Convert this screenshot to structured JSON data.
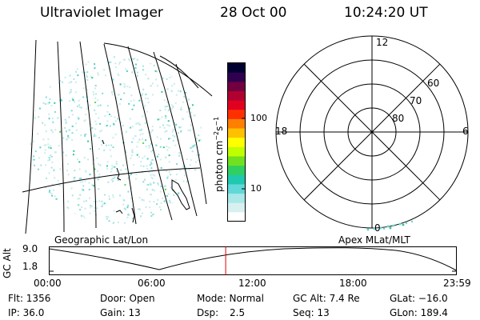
{
  "header": {
    "title": "Ultraviolet Imager",
    "date": "28 Oct 00",
    "time": "10:24:20 UT"
  },
  "colorbar": {
    "unit_label": "photon cm",
    "unit_exp1": "−2",
    "unit_mid": "s",
    "unit_exp2": "−1",
    "ticks": [
      "100",
      "10"
    ],
    "colors": [
      "#ffffff",
      "#d8f0f0",
      "#a8e8e8",
      "#60d8d8",
      "#20c8b0",
      "#30d060",
      "#70e020",
      "#c0ff00",
      "#ffff00",
      "#ffc000",
      "#ff8000",
      "#ff3000",
      "#e00020",
      "#b00030",
      "#700040",
      "#300050",
      "#000030"
    ]
  },
  "polar": {
    "labels": {
      "top": "12",
      "left": "18",
      "right": "6",
      "bottom": "0"
    },
    "lat_labels": [
      "60",
      "70",
      "80"
    ]
  },
  "panels": {
    "left_caption": "Geographic Lat/Lon",
    "right_caption": "Apex MLat/MLT"
  },
  "altitude_plot": {
    "ylabel": "GC Alt",
    "yticks": [
      "9.0",
      "1.8"
    ],
    "xticks": [
      "00:00",
      "06:00",
      "12:00",
      "18:00",
      "23:59"
    ],
    "cursor_color": "#e00000",
    "cursor_time_hours": 10.4
  },
  "status": {
    "flt": "Flt: 1356",
    "ip": "IP: 36.0",
    "door": "Door: Open",
    "gain": "Gain: 13",
    "mode": "Mode: Normal",
    "dsp_label": "Dsp:",
    "dsp_value": "2.5",
    "gcalt": "GC Alt: 7.4 Re",
    "seq": "Seq: 13",
    "glat": "GLat: −16.0",
    "glon": "GLon: 189.4"
  }
}
